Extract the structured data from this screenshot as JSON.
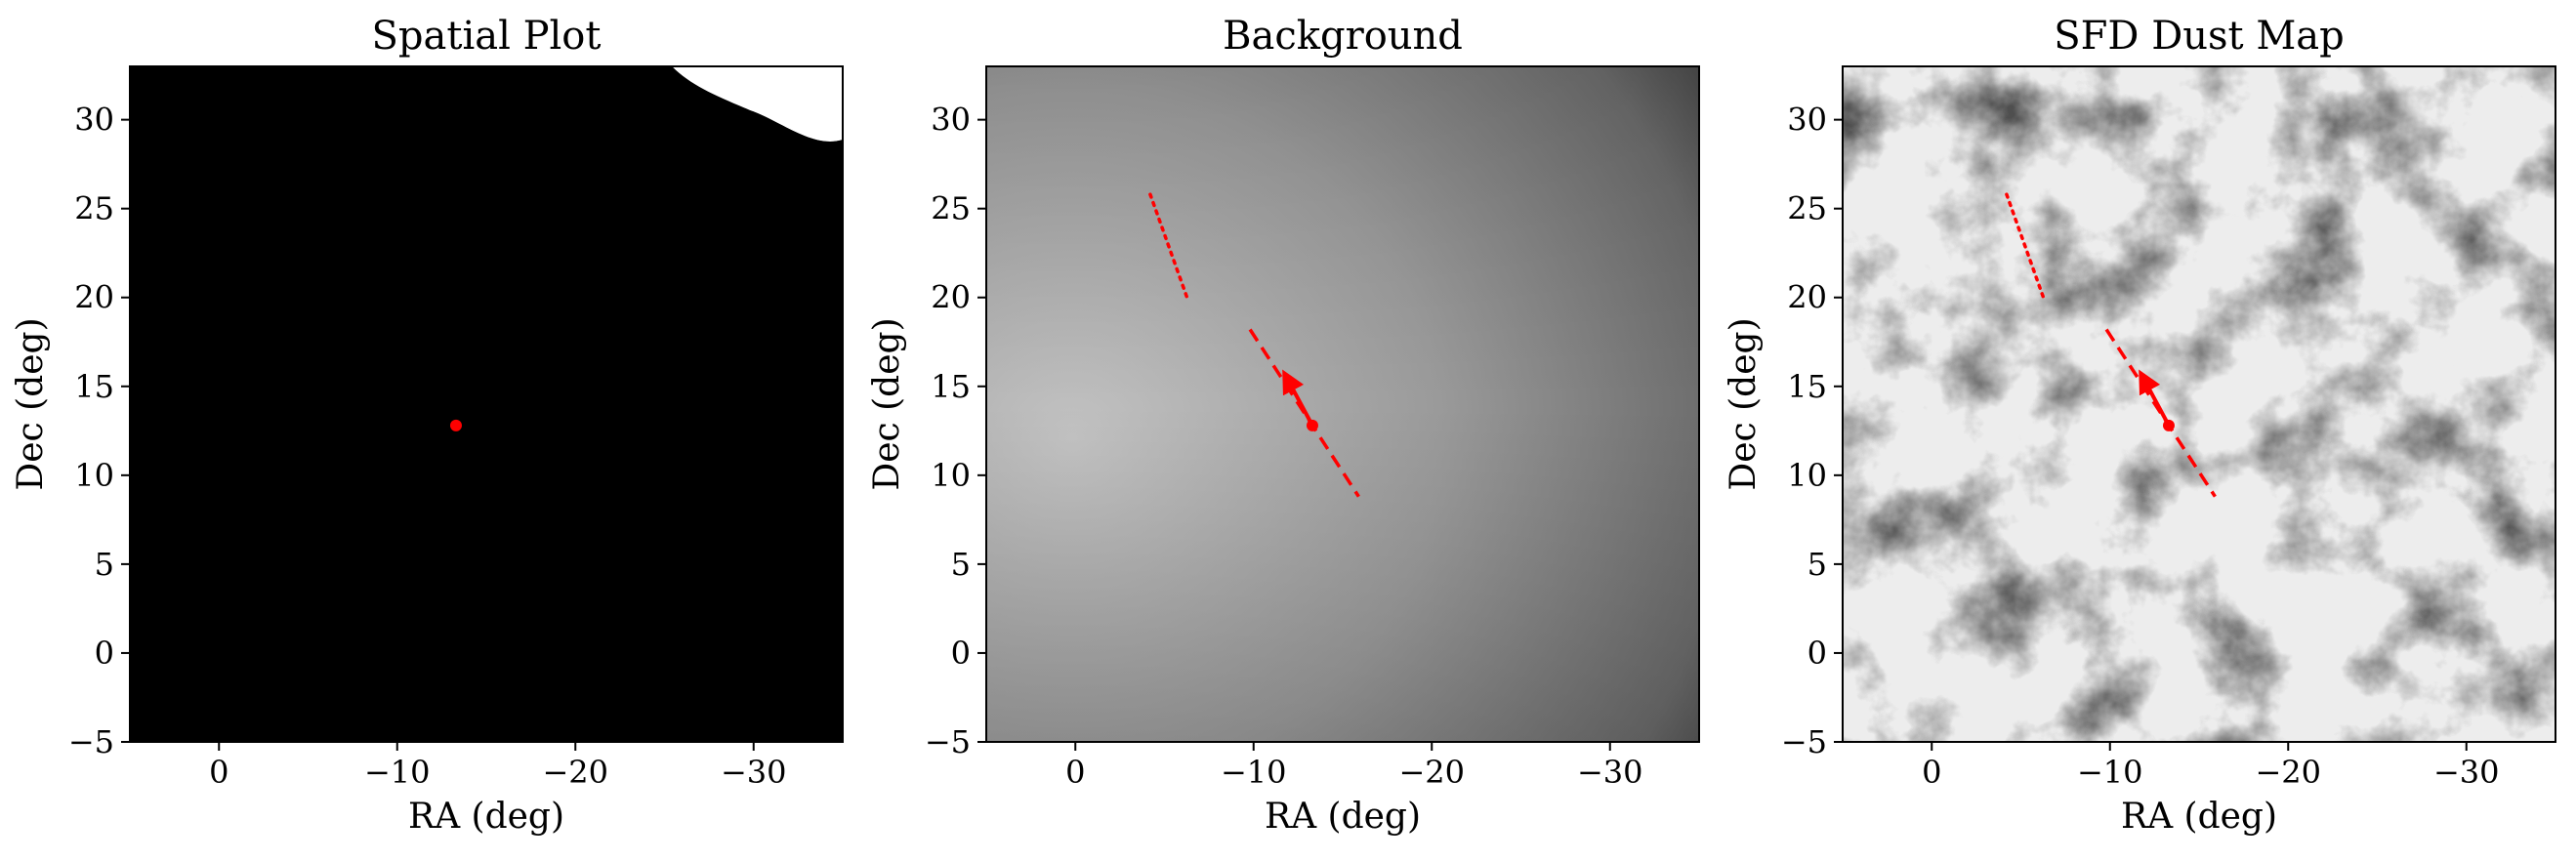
{
  "chart_data": [
    {
      "type": "heatmap",
      "title": "Spatial Plot",
      "xlabel": "RA (deg)",
      "ylabel": "Dec (deg)",
      "xlim": [
        5,
        -35
      ],
      "ylim": [
        -5,
        33
      ],
      "xticks": [
        0,
        -10,
        -20,
        -30
      ],
      "yticks": [
        -5,
        0,
        5,
        10,
        15,
        20,
        25,
        30
      ],
      "xtick_labels": [
        "0",
        "−10",
        "−20",
        "−30"
      ],
      "ytick_labels": [
        "−5",
        "0",
        "5",
        "10",
        "15",
        "20",
        "25",
        "30"
      ],
      "colormap": "grayscale",
      "marker": {
        "ra": -13.3,
        "dec": 12.8,
        "color": "#ff0000"
      },
      "dashed_track": null,
      "dotted_track": null,
      "arrow": null
    },
    {
      "type": "heatmap",
      "title": "Background",
      "xlabel": "RA (deg)",
      "ylabel": "Dec (deg)",
      "xlim": [
        5,
        -35
      ],
      "ylim": [
        -5,
        33
      ],
      "xticks": [
        0,
        -10,
        -20,
        -30
      ],
      "yticks": [
        -5,
        0,
        5,
        10,
        15,
        20,
        25,
        30
      ],
      "xtick_labels": [
        "0",
        "−10",
        "−20",
        "−30"
      ],
      "ytick_labels": [
        "−5",
        "0",
        "5",
        "10",
        "15",
        "20",
        "25",
        "30"
      ],
      "colormap": "grayscale",
      "marker": {
        "ra": -13.3,
        "dec": 12.8,
        "color": "#ff0000"
      },
      "dashed_track": {
        "start": [
          -9.8,
          18.2
        ],
        "end": [
          -15.9,
          8.8
        ],
        "color": "#ff0000"
      },
      "dotted_track": {
        "start": [
          -4.2,
          25.8
        ],
        "end": [
          -6.3,
          19.9
        ],
        "color": "#ff0000"
      },
      "arrow": {
        "from": [
          -13.3,
          12.8
        ],
        "to": [
          -11.8,
          15.6
        ],
        "color": "#ff0000"
      }
    },
    {
      "type": "heatmap",
      "title": "SFD Dust Map",
      "xlabel": "RA (deg)",
      "ylabel": "Dec (deg)",
      "xlim": [
        5,
        -35
      ],
      "ylim": [
        -5,
        33
      ],
      "xticks": [
        0,
        -10,
        -20,
        -30
      ],
      "yticks": [
        -5,
        0,
        5,
        10,
        15,
        20,
        25,
        30
      ],
      "xtick_labels": [
        "0",
        "−10",
        "−20",
        "−30"
      ],
      "ytick_labels": [
        "−5",
        "0",
        "5",
        "10",
        "15",
        "20",
        "25",
        "30"
      ],
      "colormap": "grayscale",
      "marker": {
        "ra": -13.3,
        "dec": 12.8,
        "color": "#ff0000"
      },
      "dashed_track": {
        "start": [
          -9.8,
          18.2
        ],
        "end": [
          -15.9,
          8.8
        ],
        "color": "#ff0000"
      },
      "dotted_track": {
        "start": [
          -4.2,
          25.8
        ],
        "end": [
          -6.3,
          19.9
        ],
        "color": "#ff0000"
      },
      "arrow": {
        "from": [
          -13.3,
          12.8
        ],
        "to": [
          -11.8,
          15.6
        ],
        "color": "#ff0000"
      }
    }
  ]
}
